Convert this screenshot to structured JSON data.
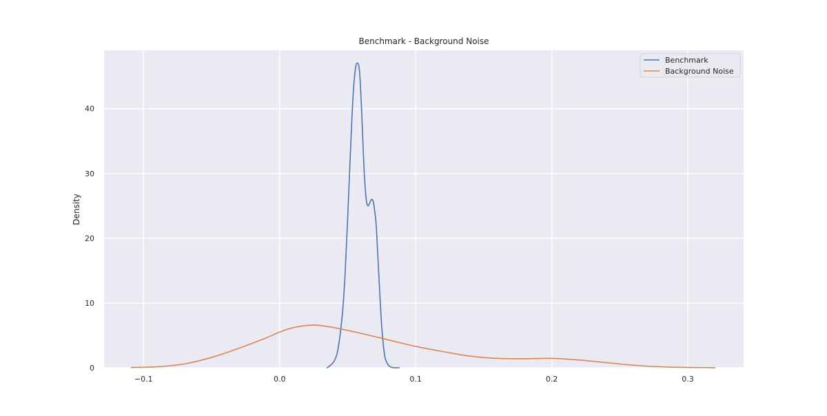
{
  "chart_data": {
    "type": "line",
    "title": "Benchmark - Background Noise",
    "xlabel": "",
    "ylabel": "Density",
    "xlim": [
      -0.129,
      0.341
    ],
    "ylim": [
      0,
      49
    ],
    "xticks": [
      -0.1,
      0.0,
      0.1,
      0.2,
      0.3
    ],
    "xtick_labels": [
      "−0.1",
      "0.0",
      "0.1",
      "0.2",
      "0.3"
    ],
    "yticks": [
      0,
      10,
      20,
      30,
      40
    ],
    "ytick_labels": [
      "0",
      "10",
      "20",
      "30",
      "40"
    ],
    "grid": true,
    "legend_position": "top-right",
    "series": [
      {
        "name": "Benchmark",
        "color": "#4c72b0",
        "x": [
          0.035,
          0.04,
          0.043,
          0.046,
          0.048,
          0.05,
          0.052,
          0.054,
          0.056,
          0.058,
          0.059,
          0.06,
          0.061,
          0.062,
          0.063,
          0.064,
          0.065,
          0.066,
          0.067,
          0.068,
          0.069,
          0.07,
          0.071,
          0.072,
          0.073,
          0.074,
          0.075,
          0.076,
          0.077,
          0.078,
          0.08,
          0.082,
          0.084,
          0.086,
          0.088
        ],
        "y": [
          0.0,
          1.0,
          3.0,
          8.0,
          14.0,
          23.0,
          33.0,
          42.0,
          46.5,
          46.8,
          45.0,
          41.0,
          36.0,
          31.0,
          27.5,
          25.5,
          25.0,
          25.3,
          25.8,
          26.0,
          25.5,
          24.0,
          22.0,
          18.0,
          14.0,
          10.0,
          6.5,
          4.0,
          2.2,
          1.2,
          0.4,
          0.1,
          0.0,
          0.0,
          0.0
        ]
      },
      {
        "name": "Background Noise",
        "color": "#dd8452",
        "x": [
          -0.109,
          -0.09,
          -0.07,
          -0.05,
          -0.03,
          -0.01,
          0.0,
          0.01,
          0.025,
          0.04,
          0.06,
          0.08,
          0.1,
          0.12,
          0.14,
          0.16,
          0.18,
          0.2,
          0.22,
          0.24,
          0.26,
          0.28,
          0.3,
          0.32
        ],
        "y": [
          0.05,
          0.15,
          0.6,
          1.6,
          3.0,
          4.6,
          5.5,
          6.2,
          6.6,
          6.2,
          5.3,
          4.3,
          3.3,
          2.5,
          1.8,
          1.45,
          1.4,
          1.45,
          1.2,
          0.8,
          0.4,
          0.15,
          0.05,
          0.01
        ]
      }
    ]
  }
}
